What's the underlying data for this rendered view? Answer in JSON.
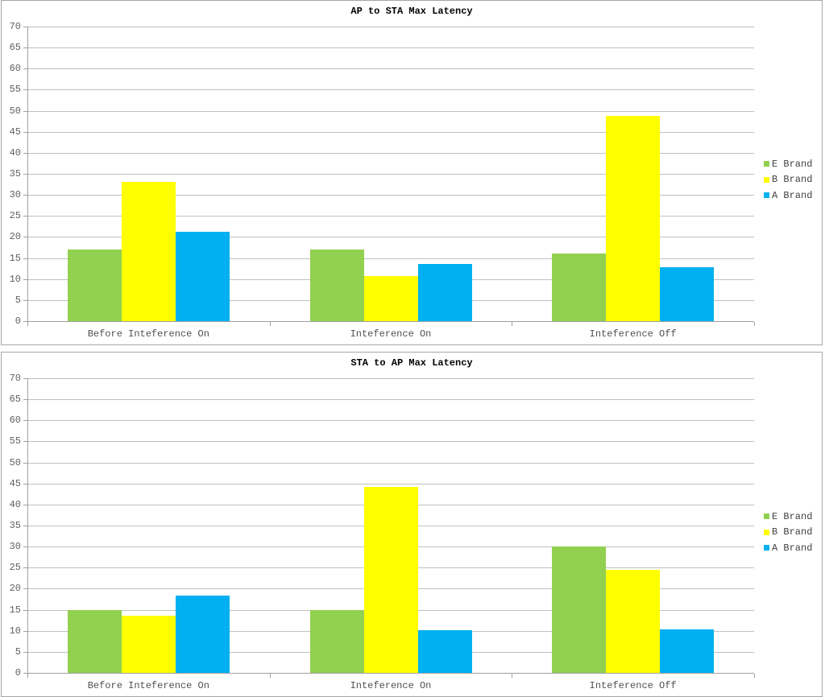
{
  "chart_data": [
    {
      "type": "bar",
      "title": "AP to STA Max Latency",
      "categories": [
        "Before Inteference On",
        "Inteference On",
        "Inteference Off"
      ],
      "series": [
        {
          "name": "E Brand",
          "color": "#92d050",
          "values": [
            17.0,
            17.0,
            16.0
          ]
        },
        {
          "name": "B Brand",
          "color": "#ffff00",
          "values": [
            33.0,
            10.8,
            48.8
          ]
        },
        {
          "name": "A Brand",
          "color": "#00b0f0",
          "values": [
            21.2,
            13.5,
            12.8
          ]
        }
      ],
      "xlabel": "",
      "ylabel": "",
      "ylim": [
        0,
        70
      ],
      "yticks": [
        0,
        5,
        10,
        15,
        20,
        25,
        30,
        35,
        40,
        45,
        50,
        55,
        60,
        65,
        70
      ],
      "grid": true,
      "legend_position": "right"
    },
    {
      "type": "bar",
      "title": "STA to AP Max Latency",
      "categories": [
        "Before Inteference On",
        "Inteference On",
        "Inteference Off"
      ],
      "series": [
        {
          "name": "E Brand",
          "color": "#92d050",
          "values": [
            15.0,
            15.0,
            30.0
          ]
        },
        {
          "name": "B Brand",
          "color": "#ffff00",
          "values": [
            13.6,
            44.1,
            24.4
          ]
        },
        {
          "name": "A Brand",
          "color": "#00b0f0",
          "values": [
            18.3,
            10.2,
            10.3
          ]
        }
      ],
      "xlabel": "",
      "ylabel": "",
      "ylim": [
        0,
        70
      ],
      "yticks": [
        0,
        5,
        10,
        15,
        20,
        25,
        30,
        35,
        40,
        45,
        50,
        55,
        60,
        65,
        70
      ],
      "grid": true,
      "legend_position": "right"
    }
  ]
}
